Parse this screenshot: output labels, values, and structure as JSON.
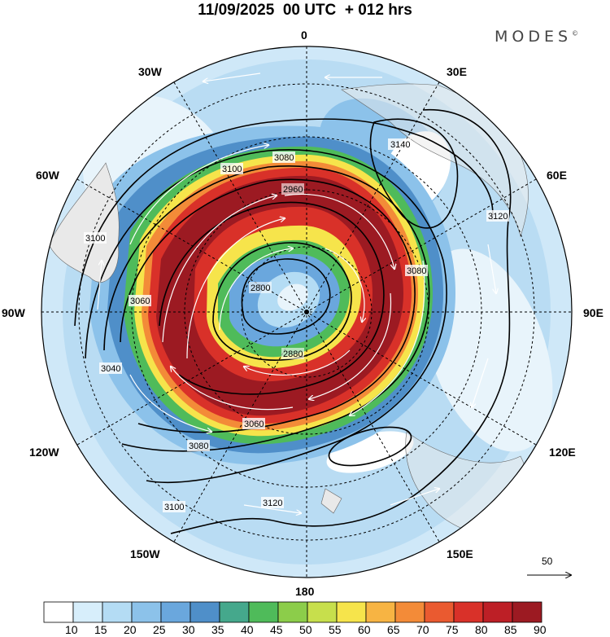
{
  "title": "11/09/2025  00 UTC  + 012 hrs",
  "brand": "MODES",
  "brand_mark": "©",
  "longitude_labels": [
    "0",
    "30E",
    "60E",
    "90E",
    "120E",
    "150E",
    "180",
    "150W",
    "120W",
    "90W",
    "60W",
    "30W"
  ],
  "contour_labels": [
    "3140",
    "3120",
    "3100",
    "3080",
    "3060",
    "3040",
    "2960",
    "2880",
    "2800"
  ],
  "wind_speed_colorbar": {
    "ticks": [
      "10",
      "15",
      "20",
      "25",
      "30",
      "35",
      "40",
      "45",
      "50",
      "55",
      "60",
      "65",
      "70",
      "75",
      "80",
      "85",
      "90"
    ],
    "colors": [
      "#ffffff",
      "#d7eefb",
      "#b4dcf4",
      "#8cc2ea",
      "#6aa7dd",
      "#4f8fc9",
      "#45a88c",
      "#4fbb5a",
      "#8ccd4a",
      "#c7df4c",
      "#f6e44b",
      "#f7b443",
      "#f38b38",
      "#ea5a30",
      "#d93129",
      "#bd1f26",
      "#9c1a22"
    ]
  },
  "reference_vector": {
    "label": "50"
  }
}
